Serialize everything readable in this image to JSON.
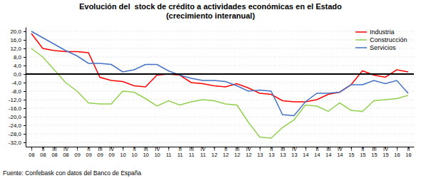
{
  "chart_data": {
    "type": "line",
    "title": "Evolución del  stock de crédito a actividades económicas en el Estado\n(crecimiento interanual)",
    "footnote": "Fuente: Confebask con datos del Banco de España",
    "categories": [
      "I\n08",
      "II\n08",
      "III\n08",
      "IV\n08",
      "I\n09",
      "II\n09",
      "III\n09",
      "IV\n09",
      "I\n10",
      "II\n10",
      "III\n10",
      "IV\n10",
      "I\n11",
      "II\n11",
      "III\n11",
      "IV\n11",
      "I\n12",
      "II\n12",
      "III\n12",
      "IV\n12",
      "I\n13",
      "II\n13",
      "III\n13",
      "IV\n13",
      "I\n14",
      "II\n14",
      "III\n14",
      "IV\n14",
      "I\n15",
      "II\n15",
      "III\n15",
      "IV\n15",
      "I\n16",
      "II\n16"
    ],
    "series": [
      {
        "name": "Industria",
        "color": "#FF0000",
        "values": [
          19.0,
          12.0,
          11.0,
          10.5,
          10.5,
          10.0,
          -1.5,
          -3.0,
          -3.5,
          -5.5,
          -6.0,
          -0.5,
          0.0,
          -0.5,
          -4.0,
          -4.5,
          -5.5,
          -6.0,
          -4.5,
          -6.5,
          -9.0,
          -9.5,
          -12.5,
          -13.0,
          -13.0,
          -12.0,
          -9.5,
          -8.5,
          -5.0,
          1.5,
          -0.5,
          -1.5,
          2.0,
          1.0
        ]
      },
      {
        "name": "Construcción",
        "color": "#92D050",
        "values": [
          12.0,
          8.0,
          2.0,
          -4.0,
          -8.0,
          -13.5,
          -14.0,
          -14.0,
          -8.0,
          -8.5,
          -11.5,
          -15.0,
          -12.5,
          -14.5,
          -13.0,
          -12.0,
          -12.5,
          -14.0,
          -14.5,
          -22.5,
          -29.5,
          -30.0,
          -25.0,
          -21.5,
          -14.5,
          -15.0,
          -17.5,
          -13.5,
          -17.0,
          -17.5,
          -12.5,
          -12.0,
          -11.5,
          -10.0
        ]
      },
      {
        "name": "Servicios",
        "color": "#4472C4",
        "values": [
          20.0,
          17.0,
          14.0,
          11.0,
          8.5,
          5.0,
          5.0,
          4.5,
          1.0,
          2.0,
          4.5,
          4.5,
          1.5,
          -0.5,
          -2.0,
          -3.0,
          -3.0,
          -3.5,
          -5.5,
          -8.0,
          -7.5,
          -8.0,
          -19.0,
          -19.5,
          -13.0,
          -9.0,
          -9.0,
          -8.5,
          -5.0,
          -5.0,
          -3.0,
          -4.5,
          -3.0,
          -9.0
        ]
      }
    ],
    "ylim": [
      -34,
      22
    ],
    "yticks": [
      {
        "value": 20,
        "label": "20,0"
      },
      {
        "value": 16,
        "label": "16,0"
      },
      {
        "value": 12,
        "label": "12,0"
      },
      {
        "value": 8,
        "label": "8,0"
      },
      {
        "value": 4,
        "label": "4,0"
      },
      {
        "value": 0,
        "label": "0,0"
      },
      {
        "value": -4,
        "label": "-4,0"
      },
      {
        "value": -8,
        "label": "-8,0"
      },
      {
        "value": -12,
        "label": "-12,0"
      },
      {
        "value": -16,
        "label": "-16,0"
      },
      {
        "value": -20,
        "label": "-20,0"
      },
      {
        "value": -24,
        "label": "-24,0"
      },
      {
        "value": -28,
        "label": "-28,0"
      },
      {
        "value": -32,
        "label": "-32,0"
      }
    ],
    "grid": true,
    "legend": "top-right"
  }
}
